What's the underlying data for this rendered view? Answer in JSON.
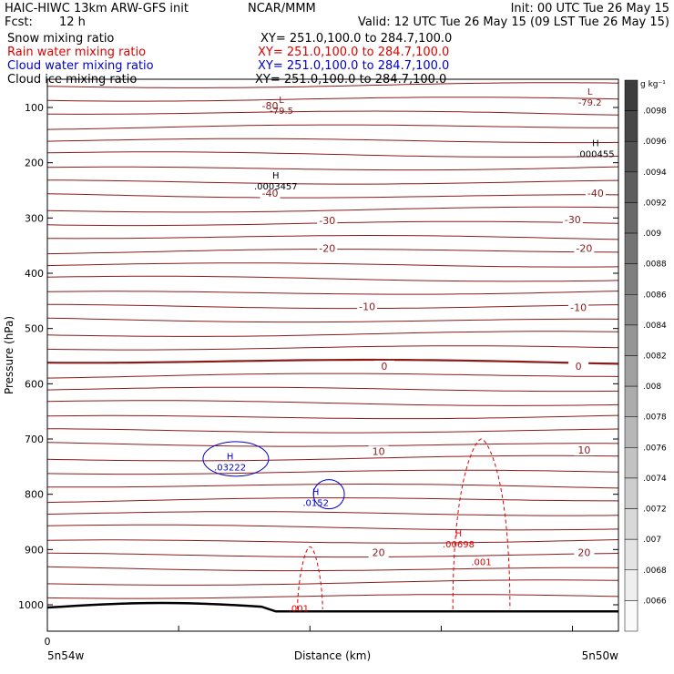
{
  "header": {
    "model_line": "HAIC-HIWC 13km ARW-GFS init",
    "org": "NCAR/MMM",
    "init": "Init: 00 UTC Tue 26 May 15",
    "fcst_label": "Fcst:",
    "fcst_value": "12 h",
    "valid": "Valid: 12 UTC Tue 26 May 15 (09 LST Tue 26 May 15)",
    "fields": [
      {
        "name": "Snow mixing ratio",
        "xy": "XY= 251.0,100.0 to 284.7,100.0",
        "color": "#000000"
      },
      {
        "name": "Rain water mixing ratio",
        "xy": "XY= 251.0,100.0 to 284.7,100.0",
        "color": "#e00000"
      },
      {
        "name": "Cloud water mixing ratio",
        "xy": "XY= 251.0,100.0 to 284.7,100.0",
        "color": "#0000c8"
      },
      {
        "name": "Cloud ice mixing ratio",
        "xy": "XY= 251.0,100.0 to 284.7,100.0",
        "color": "#000000"
      }
    ]
  },
  "chart_data": {
    "type": "contour_cross_section",
    "ylabel": "Pressure (hPa)",
    "xlabel": "Distance (km)",
    "x_start_tick": "0",
    "x_left_label": "5n54w",
    "x_right_label": "5n50w",
    "ylim": [
      1050,
      50
    ],
    "y_ticks": [
      100,
      200,
      300,
      400,
      500,
      600,
      700,
      800,
      900,
      1000
    ],
    "colorbar": {
      "unit": "g kg⁻¹",
      "labels": [
        ".0098",
        ".0096",
        ".0094",
        ".0092",
        ".009",
        ".0088",
        ".0086",
        ".0084",
        ".0082",
        ".008",
        ".0078",
        ".0076",
        ".0074",
        ".0072",
        ".007",
        ".0068",
        ".0066"
      ]
    },
    "temperature_contours": {
      "color": "#8b1a1a",
      "labels": [
        {
          "text": "-80",
          "p": 97,
          "pos": 0.39
        },
        {
          "text": "-40",
          "p": 255,
          "pos": 0.39
        },
        {
          "text": "-40",
          "p": 255,
          "pos": 0.96
        },
        {
          "text": "-30",
          "p": 304,
          "pos": 0.49
        },
        {
          "text": "-30",
          "p": 303,
          "pos": 0.92
        },
        {
          "text": "-20",
          "p": 355,
          "pos": 0.49
        },
        {
          "text": "-20",
          "p": 355,
          "pos": 0.94
        },
        {
          "text": "-10",
          "p": 460,
          "pos": 0.56
        },
        {
          "text": "-10",
          "p": 462,
          "pos": 0.93
        },
        {
          "text": "0",
          "p": 568,
          "pos": 0.59
        },
        {
          "text": "0",
          "p": 568,
          "pos": 0.93
        },
        {
          "text": "10",
          "p": 722,
          "pos": 0.58
        },
        {
          "text": "10",
          "p": 720,
          "pos": 0.94
        },
        {
          "text": "20",
          "p": 905,
          "pos": 0.58
        },
        {
          "text": "20",
          "p": 905,
          "pos": 0.94
        }
      ]
    },
    "extrema": [
      {
        "type": "L",
        "value": "-79.5",
        "p": 95,
        "pos": 0.41,
        "color": "#8b1a1a"
      },
      {
        "type": "L",
        "value": "-79.2",
        "p": 80,
        "pos": 0.95,
        "color": "#8b1a1a"
      },
      {
        "type": "H",
        "value": ".000455",
        "p": 173,
        "pos": 0.96,
        "color": "#000000"
      },
      {
        "type": "H",
        "value": ".0003457",
        "p": 232,
        "pos": 0.4,
        "color": "#000000"
      },
      {
        "type": "H",
        "value": ".03222",
        "p": 740,
        "pos": 0.32,
        "color": "#0000c8"
      },
      {
        "type": "H",
        "value": ".0152",
        "p": 805,
        "pos": 0.47,
        "color": "#0000c8"
      },
      {
        "type": "H",
        "value": ".00698",
        "p": 880,
        "pos": 0.72,
        "color": "#e00000"
      }
    ],
    "rain_labels": [
      {
        "text": ".001",
        "p": 1006,
        "pos": 0.44
      },
      {
        "text": ".001",
        "p": 922,
        "pos": 0.76
      }
    ]
  }
}
